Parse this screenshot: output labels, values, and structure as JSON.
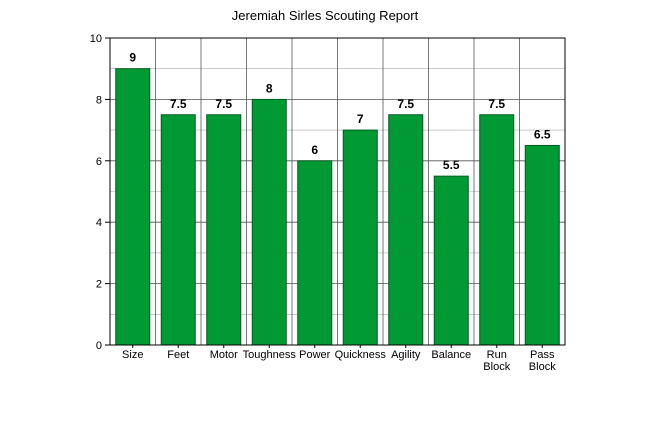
{
  "chart_data": {
    "type": "bar",
    "title": "Jeremiah Sirles Scouting Report",
    "categories": [
      [
        "Size"
      ],
      [
        "Feet"
      ],
      [
        "Motor"
      ],
      [
        "Toughness"
      ],
      [
        "Power"
      ],
      [
        "Quickness"
      ],
      [
        "Agility"
      ],
      [
        "Balance"
      ],
      [
        "Run",
        "Block"
      ],
      [
        "Pass",
        "Block"
      ]
    ],
    "values": [
      9,
      7.5,
      7.5,
      8,
      6,
      7,
      7.5,
      5.5,
      7.5,
      6.5
    ],
    "data_labels": [
      "9",
      "7.5",
      "7.5",
      "8",
      "6",
      "7",
      "7.5",
      "5.5",
      "7.5",
      "6.5"
    ],
    "ylim": [
      0,
      10
    ],
    "yticks": [
      0,
      2,
      4,
      6,
      8,
      10
    ],
    "minor_grid_step": 1,
    "grid": true,
    "bar_color": "#009933",
    "bar_edge_color": "#005c1f"
  }
}
